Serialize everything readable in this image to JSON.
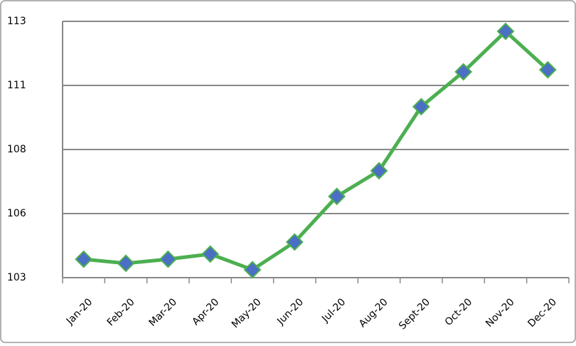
{
  "chart_data": {
    "type": "line",
    "categories": [
      "Jan-20",
      "Feb-20",
      "Mar-20",
      "Apr-20",
      "May-20",
      "Jun-20",
      "Jul-20",
      "Aug-20",
      "Sept-20",
      "Oct-20",
      "Nov-20",
      "Dec-20"
    ],
    "series": [
      {
        "color": "#4caf50",
        "marker_color": "#4a6fc4",
        "values": [
          103.72,
          103.56,
          103.72,
          103.92,
          103.31,
          104.39,
          106.17,
          107.17,
          109.67,
          111.03,
          112.61,
          111.11
        ]
      }
    ],
    "ylim": [
      103,
      113
    ],
    "yticks": [
      103,
      {
        "value": 105.5,
        "label": "106"
      },
      108,
      {
        "value": 110.5,
        "label": "111"
      },
      113
    ],
    "grid": true
  }
}
